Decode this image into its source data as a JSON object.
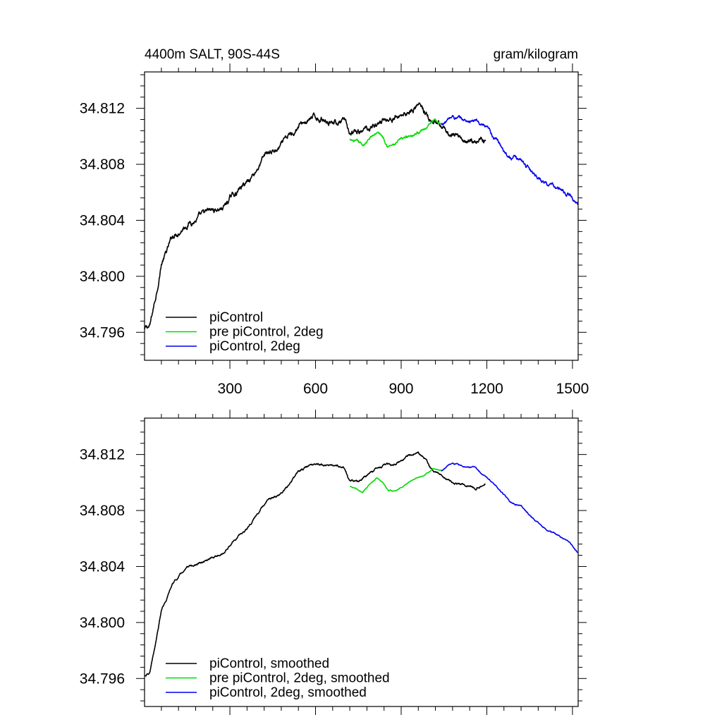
{
  "chart_data": [
    {
      "type": "line",
      "title_left": "4400m SALT, 90S-44S",
      "title_right": "gram/kilogram",
      "xlim": [
        1,
        1520
      ],
      "ylim": [
        34.794,
        34.8146
      ],
      "x_ticks": [
        300,
        600,
        900,
        1200,
        1500
      ],
      "x_tick_labels": [
        "300",
        "600",
        "900",
        "1200",
        "1500"
      ],
      "y_ticks": [
        34.796,
        34.8,
        34.804,
        34.808,
        34.812
      ],
      "y_tick_labels": [
        "34.796",
        "34.800",
        "34.804",
        "34.808",
        "34.812"
      ],
      "legend_position": "bottom-left",
      "series": [
        {
          "name": "piControl",
          "color": "#000000",
          "noise": 0.00022,
          "points": [
            [
              1,
              34.7962
            ],
            [
              20,
              34.7964
            ],
            [
              40,
              34.7985
            ],
            [
              60,
              34.801
            ],
            [
              80,
              34.8018
            ],
            [
              100,
              34.8028
            ],
            [
              130,
              34.8035
            ],
            [
              160,
              34.804
            ],
            [
              200,
              34.8042
            ],
            [
              240,
              34.8046
            ],
            [
              280,
              34.805
            ],
            [
              310,
              34.8058
            ],
            [
              350,
              34.8065
            ],
            [
              390,
              34.8076
            ],
            [
              430,
              34.8088
            ],
            [
              470,
              34.809
            ],
            [
              500,
              34.8097
            ],
            [
              540,
              34.8108
            ],
            [
              580,
              34.8112
            ],
            [
              620,
              34.8113
            ],
            [
              660,
              34.8112
            ],
            [
              700,
              34.811
            ],
            [
              720,
              34.81
            ],
            [
              760,
              34.8102
            ],
            [
              800,
              34.8108
            ],
            [
              840,
              34.8112
            ],
            [
              880,
              34.8113
            ],
            [
              920,
              34.8118
            ],
            [
              960,
              34.8123
            ],
            [
              990,
              34.8115
            ],
            [
              1010,
              34.8108
            ],
            [
              1040,
              34.8105
            ],
            [
              1080,
              34.81
            ],
            [
              1120,
              34.8098
            ],
            [
              1160,
              34.8096
            ],
            [
              1195,
              34.81
            ]
          ]
        },
        {
          "name": "pre piControl, 2deg",
          "color": "#00dd00",
          "noise": 0.00012,
          "points": [
            [
              720,
              34.8097
            ],
            [
              745,
              34.8095
            ],
            [
              765,
              34.8093
            ],
            [
              790,
              34.8098
            ],
            [
              815,
              34.8103
            ],
            [
              835,
              34.81
            ],
            [
              855,
              34.8094
            ],
            [
              880,
              34.8094
            ],
            [
              910,
              34.8098
            ],
            [
              940,
              34.8102
            ],
            [
              975,
              34.8105
            ],
            [
              1010,
              34.811
            ],
            [
              1040,
              34.8109
            ]
          ]
        },
        {
          "name": "piControl, 2deg",
          "color": "#0000ee",
          "noise": 0.00015,
          "points": [
            [
              1040,
              34.8108
            ],
            [
              1080,
              34.8114
            ],
            [
              1120,
              34.8111
            ],
            [
              1160,
              34.8111
            ],
            [
              1200,
              34.8104
            ],
            [
              1240,
              34.8096
            ],
            [
              1280,
              34.8086
            ],
            [
              1320,
              34.8083
            ],
            [
              1360,
              34.8075
            ],
            [
              1400,
              34.8068
            ],
            [
              1450,
              34.8062
            ],
            [
              1490,
              34.8058
            ],
            [
              1520,
              34.805
            ]
          ]
        }
      ]
    },
    {
      "type": "line",
      "title_left": "",
      "title_right": "",
      "xlim": [
        1,
        1520
      ],
      "ylim": [
        34.794,
        34.8146
      ],
      "x_ticks": [
        300,
        600,
        900,
        1200,
        1500
      ],
      "x_tick_labels": [],
      "y_ticks": [
        34.796,
        34.8,
        34.804,
        34.808,
        34.812
      ],
      "y_tick_labels": [
        "34.796",
        "34.800",
        "34.804",
        "34.808",
        "34.812"
      ],
      "legend_position": "bottom-left",
      "series": [
        {
          "name": "piControl, smoothed",
          "color": "#000000",
          "noise": 8e-05,
          "points": [
            [
              1,
              34.7962
            ],
            [
              20,
              34.7964
            ],
            [
              40,
              34.7985
            ],
            [
              60,
              34.801
            ],
            [
              80,
              34.8018
            ],
            [
              100,
              34.8028
            ],
            [
              130,
              34.8035
            ],
            [
              160,
              34.804
            ],
            [
              200,
              34.8042
            ],
            [
              240,
              34.8046
            ],
            [
              280,
              34.805
            ],
            [
              310,
              34.8058
            ],
            [
              350,
              34.8065
            ],
            [
              390,
              34.8076
            ],
            [
              430,
              34.8088
            ],
            [
              470,
              34.809
            ],
            [
              500,
              34.8097
            ],
            [
              540,
              34.8108
            ],
            [
              580,
              34.8112
            ],
            [
              620,
              34.8113
            ],
            [
              660,
              34.8112
            ],
            [
              700,
              34.811
            ],
            [
              720,
              34.81
            ],
            [
              760,
              34.8102
            ],
            [
              800,
              34.8108
            ],
            [
              840,
              34.8112
            ],
            [
              880,
              34.8113
            ],
            [
              920,
              34.8118
            ],
            [
              960,
              34.8123
            ],
            [
              990,
              34.8115
            ],
            [
              1010,
              34.8108
            ],
            [
              1040,
              34.8105
            ],
            [
              1080,
              34.81
            ],
            [
              1120,
              34.8098
            ],
            [
              1160,
              34.8096
            ],
            [
              1195,
              34.81
            ]
          ]
        },
        {
          "name": "pre piControl, 2deg, smoothed",
          "color": "#00dd00",
          "noise": 4e-05,
          "points": [
            [
              720,
              34.8097
            ],
            [
              745,
              34.8095
            ],
            [
              765,
              34.8093
            ],
            [
              790,
              34.8098
            ],
            [
              815,
              34.8103
            ],
            [
              835,
              34.81
            ],
            [
              855,
              34.8094
            ],
            [
              880,
              34.8094
            ],
            [
              910,
              34.8098
            ],
            [
              940,
              34.8102
            ],
            [
              975,
              34.8105
            ],
            [
              1010,
              34.811
            ],
            [
              1040,
              34.8109
            ]
          ]
        },
        {
          "name": "piControl, 2deg, smoothed",
          "color": "#0000ee",
          "noise": 5e-05,
          "points": [
            [
              1040,
              34.8108
            ],
            [
              1080,
              34.8114
            ],
            [
              1120,
              34.8111
            ],
            [
              1160,
              34.8111
            ],
            [
              1200,
              34.8104
            ],
            [
              1240,
              34.8096
            ],
            [
              1280,
              34.8086
            ],
            [
              1320,
              34.8083
            ],
            [
              1360,
              34.8075
            ],
            [
              1400,
              34.8068
            ],
            [
              1450,
              34.8062
            ],
            [
              1490,
              34.8058
            ],
            [
              1520,
              34.805
            ]
          ]
        }
      ]
    }
  ]
}
